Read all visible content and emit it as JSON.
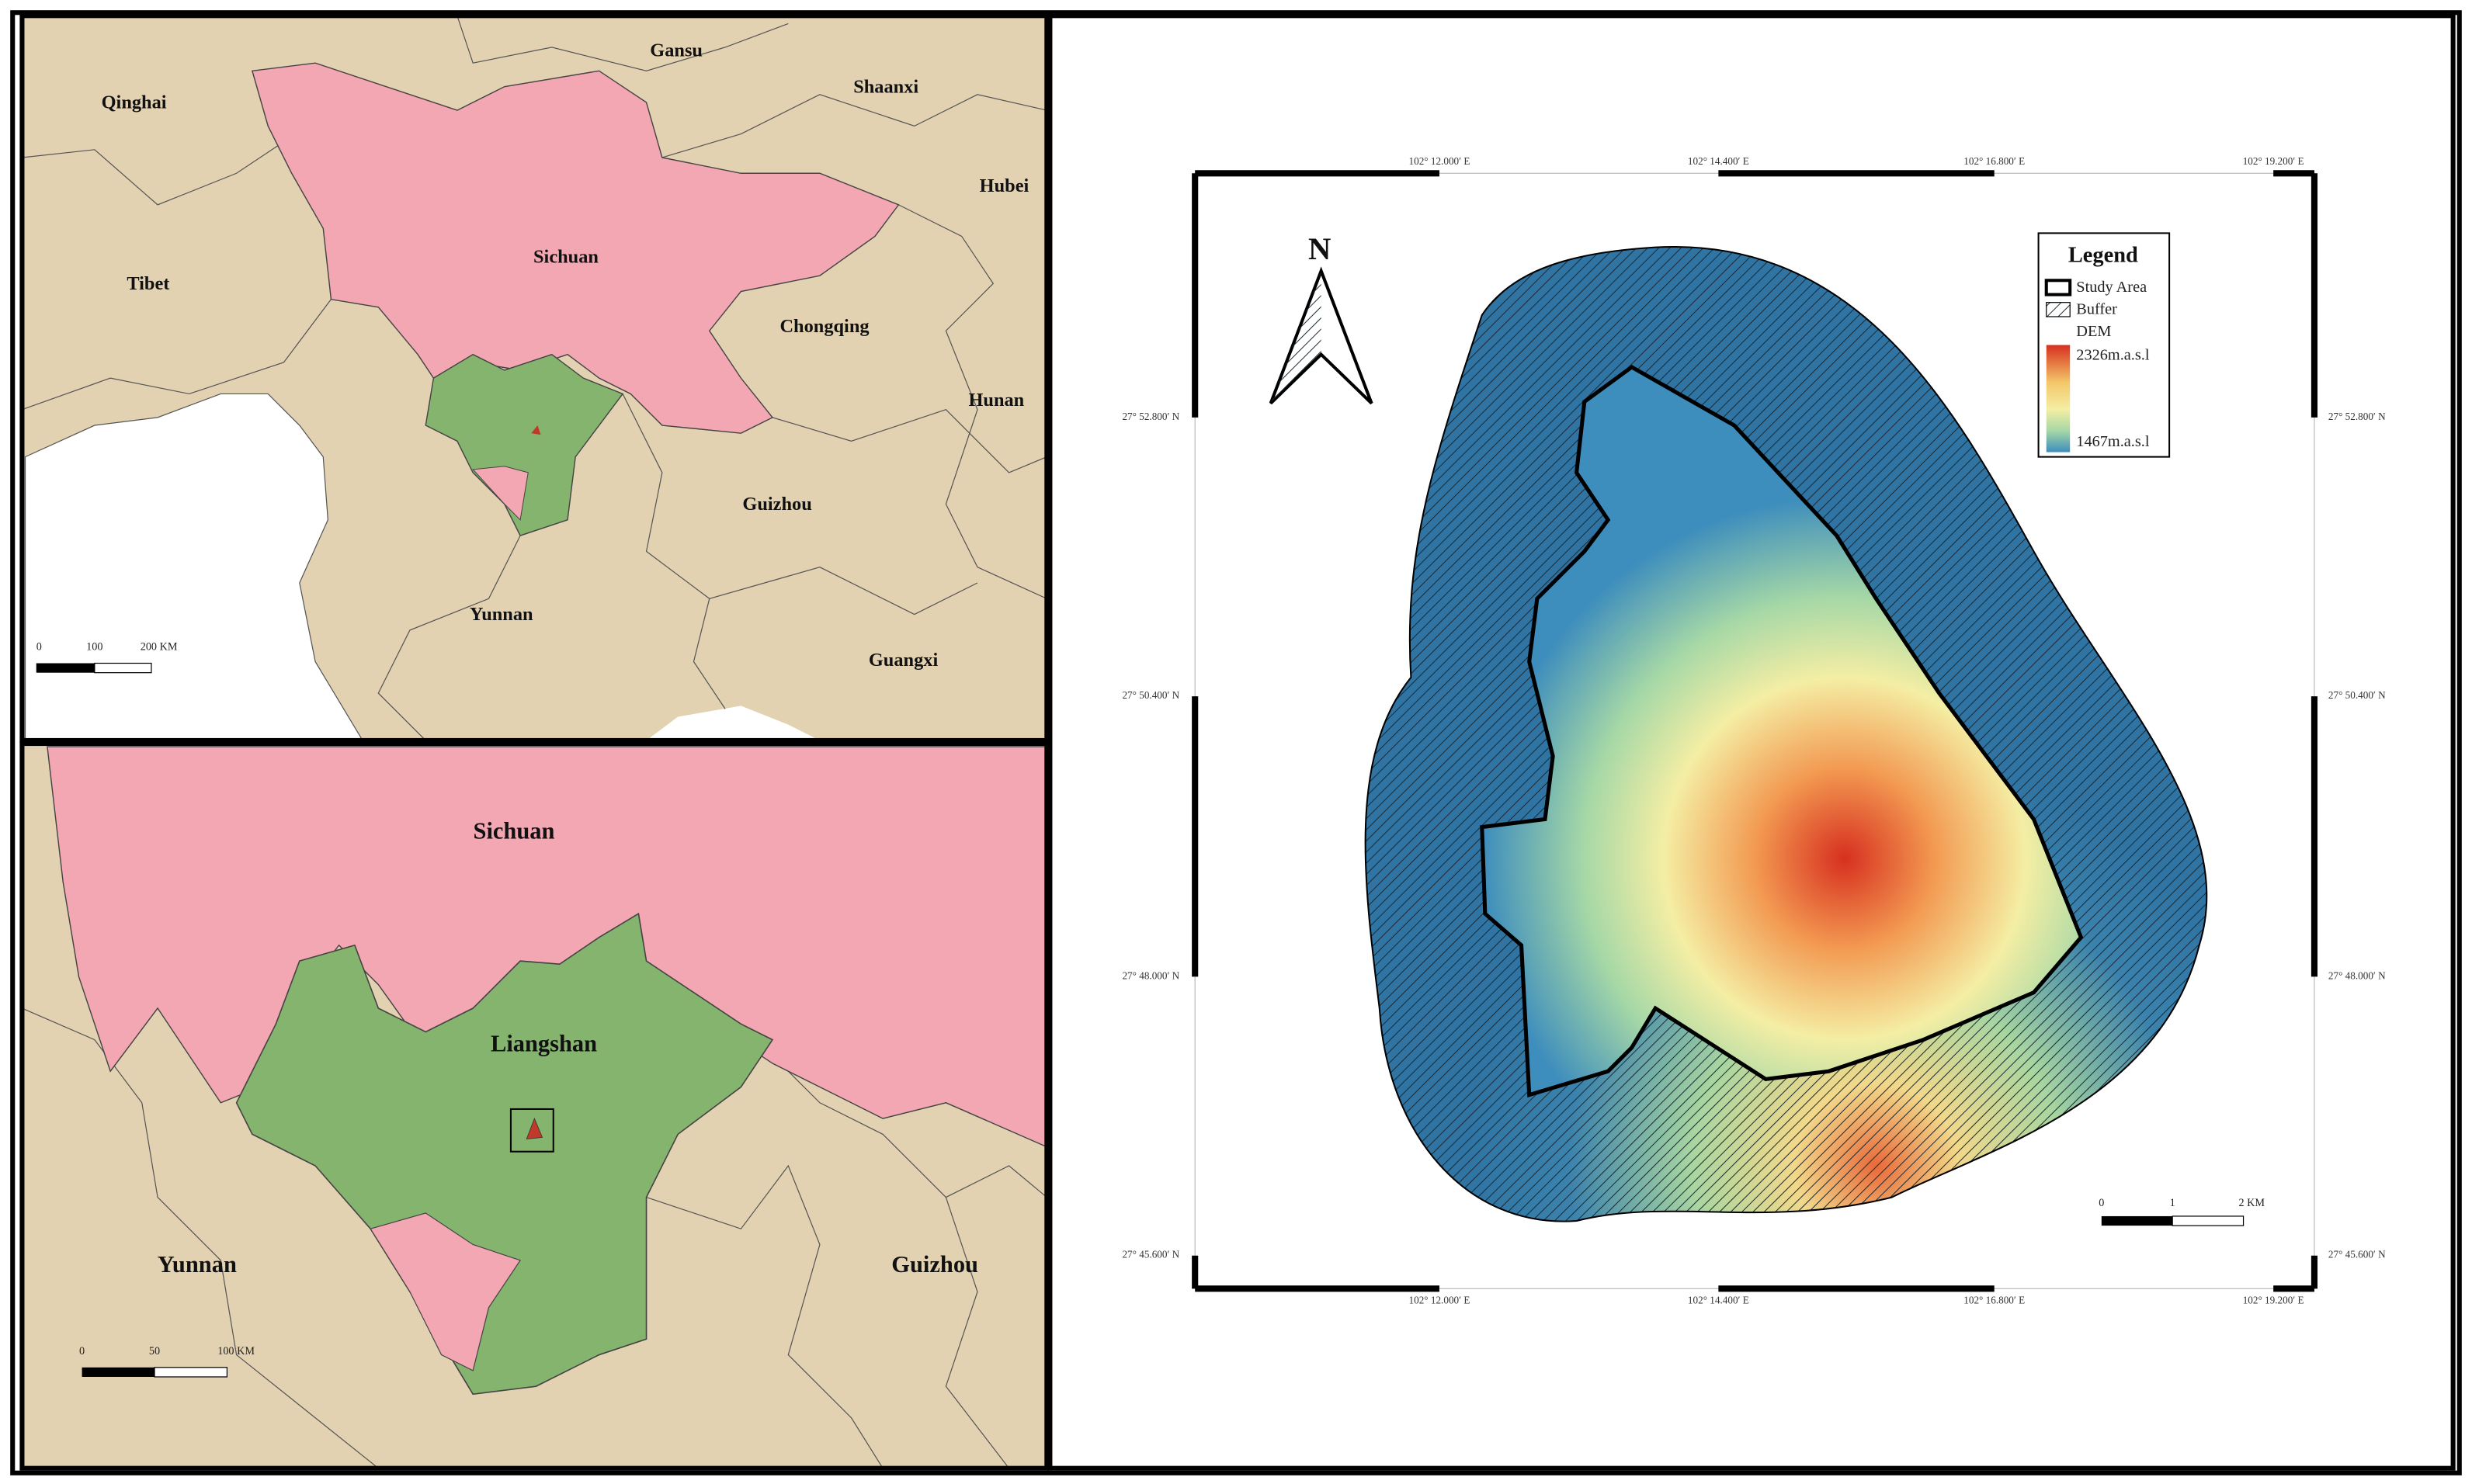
{
  "overview_map": {
    "labels": [
      "Qinghai",
      "Gansu",
      "Shaanxi",
      "Hubei",
      "Tibet",
      "Sichuan",
      "Chongqing",
      "Hunan",
      "Guizhou",
      "Yunnan",
      "Guangxi"
    ],
    "scale_bar": [
      "0",
      "100",
      "200 KM"
    ]
  },
  "regional_map": {
    "labels": [
      "Sichuan",
      "Liangshan",
      "Yunnan",
      "Guizhou"
    ],
    "scale_bar": [
      "0",
      "50",
      "100 KM"
    ]
  },
  "study_area_map": {
    "north_arrow": "N",
    "x_coordinates": [
      "102° 12.000′ E",
      "102° 14.400′ E",
      "102° 16.800′ E",
      "102° 19.200′ E"
    ],
    "y_coordinates": [
      "27° 52.800′ N",
      "27° 50.400′ N",
      "27° 48.000′ N",
      "27° 45.600′ N"
    ],
    "legend": {
      "title": "Legend",
      "items": [
        "Study Area",
        "Buffer",
        "DEM"
      ],
      "dem_max": "2326m.a.s.l",
      "dem_min": "1467m.a.s.l"
    },
    "scale_bar": [
      "0",
      "1",
      "2 KM"
    ]
  }
}
